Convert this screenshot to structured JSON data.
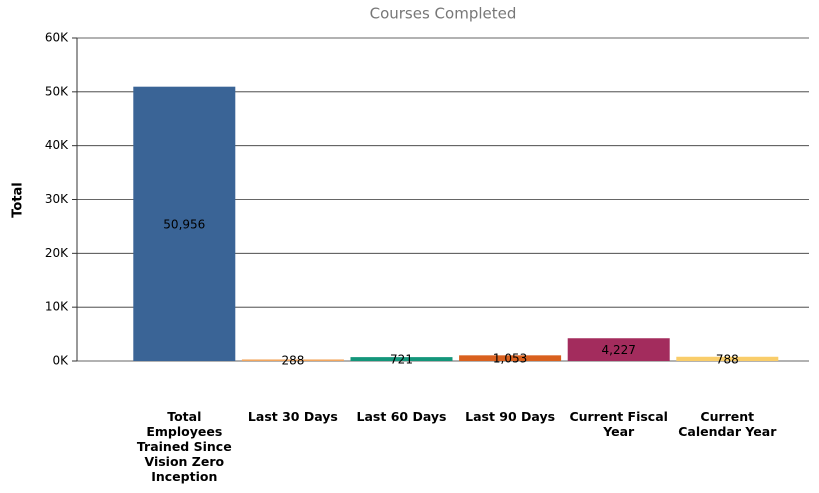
{
  "chart_data": {
    "type": "bar",
    "title": "Courses Completed",
    "ylabel": "Total",
    "categories": [
      "Total Employees Trained Since Vision Zero Inception",
      "Last 30 Days",
      "Last 60 Days",
      "Last 90 Days",
      "Current Fiscal Year",
      "Current Calendar Year"
    ],
    "values": [
      50956,
      288,
      721,
      1053,
      4227,
      788
    ],
    "value_labels": [
      "50,956",
      "288",
      "721",
      "1,053",
      "4,227",
      "788"
    ],
    "colors": [
      "#3a6496",
      "#f2a65e",
      "#13967a",
      "#d9601e",
      "#a32c5d",
      "#f9cd6a"
    ],
    "ylim": [
      0,
      60000
    ],
    "yticks": [
      {
        "value": 0,
        "label": "0K"
      },
      {
        "value": 10000,
        "label": "10K"
      },
      {
        "value": 20000,
        "label": "20K"
      },
      {
        "value": 30000,
        "label": "30K"
      },
      {
        "value": 40000,
        "label": "40K"
      },
      {
        "value": 50000,
        "label": "50K"
      },
      {
        "value": 60000,
        "label": "60K"
      }
    ],
    "grid": true
  }
}
